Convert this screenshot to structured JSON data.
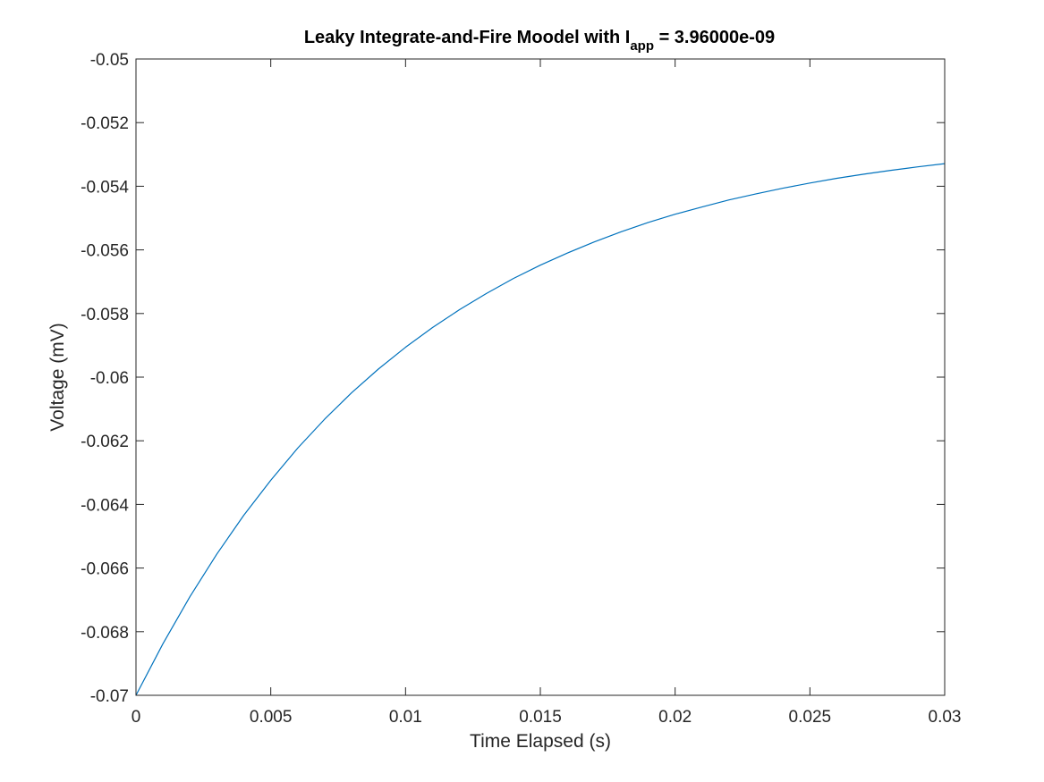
{
  "chart_data": {
    "type": "line",
    "title": {
      "prefix": "Leaky Integrate-and-Fire Moodel with I",
      "subscript": "app",
      "suffix": " = 3.96000e-09"
    },
    "xlabel": "Time Elapsed (s)",
    "ylabel": "Voltage (mV)",
    "xlim": [
      0,
      0.03
    ],
    "ylim": [
      -0.07,
      -0.05
    ],
    "xticks": [
      0,
      0.005,
      0.01,
      0.015,
      0.02,
      0.025,
      0.03
    ],
    "xtick_labels": [
      "0",
      "0.005",
      "0.01",
      "0.015",
      "0.02",
      "0.025",
      "0.03"
    ],
    "yticks": [
      -0.07,
      -0.068,
      -0.066,
      -0.064,
      -0.062,
      -0.06,
      -0.058,
      -0.056,
      -0.054,
      -0.052,
      -0.05
    ],
    "ytick_labels": [
      "-0.07",
      "-0.068",
      "-0.066",
      "-0.064",
      "-0.062",
      "-0.06",
      "-0.058",
      "-0.056",
      "-0.054",
      "-0.052",
      "-0.05"
    ],
    "grid": false,
    "line_color": "#0072BD",
    "series": [
      {
        "x": [
          0,
          0.001,
          0.002,
          0.003,
          0.004,
          0.005,
          0.006,
          0.007,
          0.008,
          0.009,
          0.01,
          0.011,
          0.012,
          0.013,
          0.014,
          0.015,
          0.016,
          0.017,
          0.018,
          0.019,
          0.02,
          0.021,
          0.022,
          0.023,
          0.024,
          0.025,
          0.026,
          0.027,
          0.028,
          0.029,
          0.03
        ],
        "y": [
          -0.07,
          -0.06838,
          -0.0669,
          -0.06556,
          -0.06434,
          -0.06324,
          -0.06223,
          -0.06132,
          -0.06049,
          -0.05974,
          -0.05906,
          -0.05844,
          -0.05788,
          -0.05737,
          -0.0569,
          -0.05648,
          -0.0561,
          -0.05575,
          -0.05543,
          -0.05514,
          -0.05488,
          -0.05465,
          -0.05443,
          -0.05424,
          -0.05406,
          -0.0539,
          -0.05375,
          -0.05362,
          -0.0535,
          -0.05339,
          -0.05329
        ]
      }
    ]
  }
}
